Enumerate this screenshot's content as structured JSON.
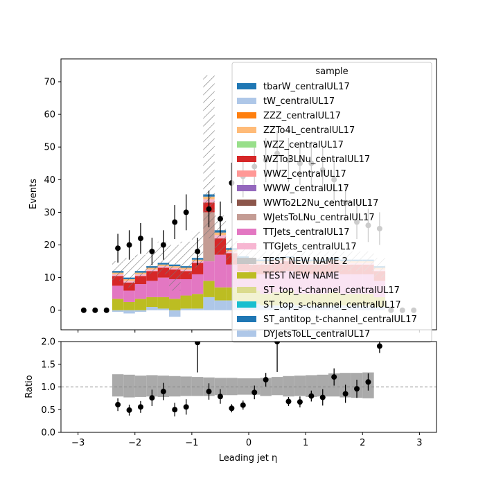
{
  "chart_data": [
    {
      "type": "bar",
      "subtype": "stacked-histogram-with-data-points",
      "panel": "main",
      "ylabel": "Events",
      "ylim": [
        -6,
        77
      ],
      "yticks": [
        "0",
        "10",
        "20",
        "30",
        "40",
        "50",
        "60",
        "70"
      ],
      "xlim": [
        -3.3,
        3.3
      ],
      "bin_edges": [
        -2.4,
        -2.2,
        -2.0,
        -1.8,
        -1.6,
        -1.4,
        -1.2,
        -1.0,
        -0.8,
        -0.6,
        -0.4,
        -0.2,
        0.0,
        0.2,
        0.4,
        0.6,
        0.8,
        1.0,
        1.2,
        1.4,
        1.6,
        1.8,
        2.0,
        2.2,
        2.4
      ],
      "legend": {
        "title": "sample",
        "placement": "upper right",
        "entries": [
          {
            "name": "tbarW_centralUL17",
            "color": "#1f77b4"
          },
          {
            "name": "tW_centralUL17",
            "color": "#aec7e8"
          },
          {
            "name": "ZZZ_centralUL17",
            "color": "#ff7f0e"
          },
          {
            "name": "ZZTo4L_centralUL17",
            "color": "#ffbb78"
          },
          {
            "name": "WZZ_centralUL17",
            "color": "#98df8a"
          },
          {
            "name": "WZTo3LNu_centralUL17",
            "color": "#d62728"
          },
          {
            "name": "WWZ_centralUL17",
            "color": "#ff9896"
          },
          {
            "name": "WWW_centralUL17",
            "color": "#9467bd"
          },
          {
            "name": "WWTo2L2Nu_centralUL17",
            "color": "#8c564b"
          },
          {
            "name": "WJetsToLNu_centralUL17",
            "color": "#c49c94"
          },
          {
            "name": "TTJets_centralUL17",
            "color": "#e377c2"
          },
          {
            "name": "TTGJets_centralUL17",
            "color": "#f7b6d2"
          },
          {
            "name": "TEST NEW NAME 2",
            "color": "#c7c7c7"
          },
          {
            "name": "TEST NEW NAME",
            "color": "#bcbd22"
          },
          {
            "name": "ST_top_t-channel_centralUL17",
            "color": "#dbdb8d"
          },
          {
            "name": "ST_top_s-channel_centralUL17",
            "color": "#17becf"
          },
          {
            "name": "ST_antitop_t-channel_centralUL17",
            "color": "#1f77b4"
          },
          {
            "name": "DYJetsToLL_centralUL17",
            "color": "#aec7e8"
          }
        ]
      },
      "stack_layers": [
        {
          "name": "DYJetsToLL_centralUL17",
          "color": "#aec7e8",
          "values": [
            -0.5,
            -1,
            -0.5,
            1,
            0.5,
            -2,
            0.5,
            0.5,
            4,
            3,
            3,
            2,
            2,
            1.5,
            1.5,
            2,
            1.5,
            1.5,
            1.5,
            1.5,
            1.5,
            1.5,
            1.5,
            1
          ]
        },
        {
          "name": "TEST NEW NAME",
          "color": "#bcbd22",
          "values": [
            3.5,
            2.5,
            3.5,
            3,
            3.5,
            3.5,
            4,
            4.5,
            5,
            4,
            4,
            4,
            4,
            3.5,
            4,
            4,
            3.5,
            3.5,
            3.5,
            4,
            3.5,
            3.5,
            3.5,
            3
          ]
        },
        {
          "name": "TTJets_centralUL17",
          "color": "#e377c2",
          "values": [
            4,
            3.5,
            4.5,
            5,
            6,
            6,
            5,
            6,
            6,
            10,
            7,
            6,
            5,
            6,
            6,
            6,
            6,
            6,
            6,
            6,
            6,
            6,
            6,
            5
          ]
        },
        {
          "name": "WJetsToLNu_centralUL17",
          "color": "#c49c94",
          "values": [
            0,
            0,
            0,
            0,
            0,
            0,
            0,
            0,
            15,
            0,
            0,
            0,
            0,
            0,
            0,
            0,
            0,
            0,
            0,
            0,
            0,
            0,
            0,
            0
          ]
        },
        {
          "name": "WZTo3LNu_centralUL17",
          "color": "#d62728",
          "values": [
            3,
            2.5,
            2.5,
            3,
            3,
            3,
            2.5,
            3.5,
            3,
            5,
            3.5,
            3,
            3,
            3,
            3,
            3,
            3,
            3,
            3,
            3,
            3,
            3,
            3,
            3
          ]
        },
        {
          "name": "TTGJets_centralUL17",
          "color": "#f7b6d2",
          "values": [
            0.5,
            0.5,
            0.5,
            0.5,
            0.5,
            0.5,
            0.5,
            0.5,
            1,
            1,
            0.5,
            0.5,
            0.5,
            0.5,
            0.5,
            0.5,
            0.5,
            0.5,
            0.5,
            0.5,
            0.5,
            0.5,
            0.5,
            0.5
          ]
        },
        {
          "name": "ZZTo4L_centralUL17",
          "color": "#ffbb78",
          "values": [
            0.5,
            0.5,
            0.5,
            0.5,
            0.5,
            0.5,
            0.5,
            0.5,
            0.8,
            0.8,
            0.5,
            0.5,
            0.5,
            0.5,
            0.5,
            0.5,
            0.5,
            0.5,
            0.5,
            0.5,
            0.5,
            0.5,
            0.5,
            0.5
          ]
        },
        {
          "name": "tbarW_centralUL17",
          "color": "#1f77b4",
          "values": [
            0.5,
            0.5,
            0.5,
            0.5,
            0.5,
            0.5,
            0.5,
            0.5,
            0.7,
            0.7,
            0.5,
            0.5,
            0.5,
            0.5,
            0.5,
            0.5,
            0.5,
            0.5,
            0.5,
            0.5,
            0.5,
            0.5,
            0.5,
            0.5
          ]
        }
      ],
      "uncertainty_band": {
        "style": "hatched",
        "down": [
          9,
          7,
          10,
          11,
          11,
          6,
          11,
          13,
          22,
          17,
          14,
          14,
          13,
          12,
          12,
          12,
          12,
          12,
          12,
          12,
          12,
          12,
          12,
          10
        ],
        "up": [
          15,
          16,
          17,
          19,
          21,
          20,
          21,
          24,
          72,
          29,
          22,
          21,
          20,
          18,
          18,
          18,
          18,
          18,
          18,
          18,
          18,
          18,
          18,
          16
        ]
      },
      "data_points": {
        "x": [
          -2.9,
          -2.7,
          -2.5,
          -2.3,
          -2.1,
          -1.9,
          -1.7,
          -1.5,
          -1.3,
          -1.1,
          -0.9,
          -0.7,
          -0.5,
          -0.3,
          -0.1,
          0.1,
          0.3,
          0.5,
          0.7,
          0.9,
          1.1,
          1.3,
          1.5,
          1.7,
          1.9,
          2.1,
          2.3,
          2.5,
          2.7,
          2.9
        ],
        "y": [
          0,
          0,
          0,
          19,
          20,
          22,
          18,
          20,
          27,
          30,
          18,
          31,
          28,
          39,
          41,
          44,
          46,
          48,
          46,
          45,
          45,
          43,
          40,
          33,
          27,
          26,
          25,
          0,
          0,
          0
        ],
        "yerr": [
          0,
          0,
          0,
          4.4,
          4.5,
          4.7,
          4.2,
          4.5,
          5.2,
          5.5,
          4.2,
          5.6,
          5.3,
          6.2,
          6.4,
          6.6,
          6.8,
          6.9,
          6.8,
          6.7,
          6.7,
          6.6,
          6.3,
          5.7,
          5.2,
          5.1,
          5.0,
          0,
          0,
          0
        ]
      }
    },
    {
      "type": "scatter",
      "panel": "ratio",
      "xlabel": "Leading jet  η",
      "ylabel": "Ratio",
      "ylim": [
        0.0,
        2.0
      ],
      "yticks": [
        "0.0",
        "0.5",
        "1.0",
        "1.5",
        "2.0"
      ],
      "xticks": [
        "−3",
        "−2",
        "−1",
        "0",
        "1",
        "2",
        "3"
      ],
      "reference_line": 1.0,
      "band": {
        "bin_edges": [
          -2.4,
          -2.2,
          -2.0,
          -1.8,
          -1.6,
          -1.4,
          -1.2,
          -1.0,
          -0.8,
          -0.6,
          -0.4,
          -0.2,
          0.0,
          0.2,
          0.4,
          0.6,
          0.8,
          1.0,
          1.2,
          1.4,
          1.6,
          1.8,
          2.0,
          2.2
        ],
        "down": [
          0.79,
          0.77,
          0.78,
          0.79,
          0.78,
          0.79,
          0.8,
          0.8,
          0.8,
          0.82,
          0.82,
          0.83,
          0.83,
          0.8,
          0.82,
          0.79,
          0.8,
          0.78,
          0.79,
          0.79,
          0.77,
          0.76,
          0.75
        ],
        "up": [
          1.28,
          1.27,
          1.25,
          1.26,
          1.25,
          1.24,
          1.23,
          1.22,
          1.21,
          1.2,
          1.2,
          1.19,
          1.19,
          1.2,
          1.22,
          1.24,
          1.25,
          1.26,
          1.27,
          1.3,
          1.31,
          1.31,
          1.32
        ]
      },
      "points": {
        "x": [
          -2.3,
          -2.1,
          -1.9,
          -1.7,
          -1.5,
          -1.3,
          -1.1,
          -0.9,
          -0.7,
          -0.5,
          -0.3,
          -0.1,
          0.1,
          0.3,
          0.5,
          0.7,
          0.9,
          1.1,
          1.3,
          1.5,
          1.7,
          1.9,
          2.1,
          2.3
        ],
        "y": [
          0.61,
          0.49,
          0.56,
          0.76,
          0.9,
          0.5,
          0.56,
          1.98,
          0.9,
          0.79,
          0.53,
          0.6,
          0.88,
          1.16,
          2.0,
          0.68,
          0.67,
          0.8,
          0.77,
          1.22,
          0.85,
          0.96,
          1.11,
          1.9
        ],
        "yerr": [
          0.14,
          0.12,
          0.13,
          0.18,
          0.19,
          0.15,
          0.17,
          0.66,
          0.18,
          0.16,
          0.09,
          0.1,
          0.15,
          0.15,
          0.67,
          0.1,
          0.12,
          0.12,
          0.18,
          0.19,
          0.2,
          0.2,
          0.19,
          0.15
        ]
      }
    }
  ]
}
